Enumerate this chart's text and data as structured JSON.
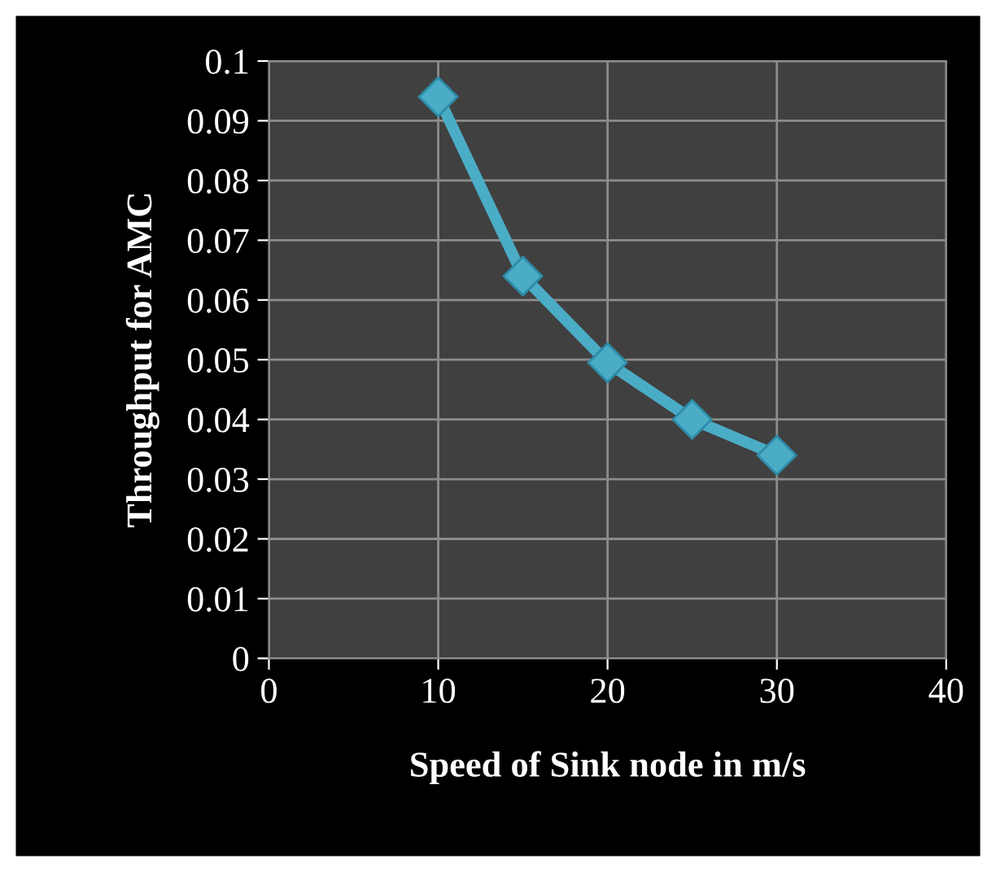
{
  "chart_data": {
    "type": "line",
    "xlabel": "Speed of Sink node in m/s",
    "ylabel": "Throughput for AMC",
    "x": [
      10,
      15,
      20,
      25,
      30
    ],
    "series": [
      {
        "color": "#4bacc6",
        "values": [
          0.094,
          0.064,
          0.0495,
          0.04,
          0.034
        ]
      }
    ],
    "xlim": [
      0,
      40
    ],
    "xticks": [
      0,
      10,
      20,
      30,
      40
    ],
    "ylim": [
      0,
      0.1
    ],
    "yticks": [
      0,
      0.01,
      0.02,
      0.03,
      0.04,
      0.05,
      0.06,
      0.07,
      0.08,
      0.09,
      0.1
    ],
    "grid": true,
    "marker": "diamond",
    "line_style": "solid"
  }
}
